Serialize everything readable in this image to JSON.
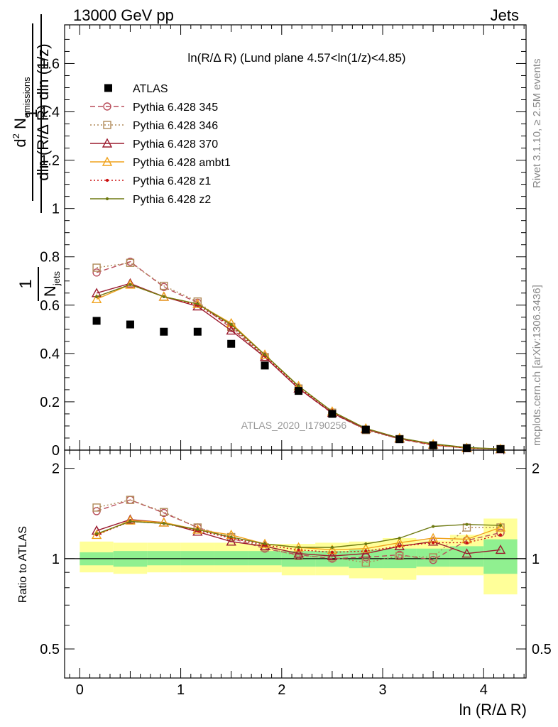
{
  "header": {
    "left": "13000 GeV pp",
    "right": "Jets",
    "plot_title": "ln(R/Δ R) (Lund plane 4.57<ln(1/z)<4.85)",
    "watermark": "ATLAS_2020_I1790256",
    "side_rivet": "Rivet 3.1.10, ≥ 2.5M events",
    "side_mcplots": "mcplots.cern.ch [arXiv:1306.3436]"
  },
  "axes": {
    "xlabel": "ln (R/Δ R)",
    "ylabel_top": "1/N_jets d²N_emissions / dln(R/ΔR) dln(1/z)",
    "ylabel_ratio": "Ratio to ATLAS"
  },
  "colors": {
    "atlas": "#000000",
    "p345": "#b84c5a",
    "p346": "#b08a58",
    "p370": "#9b1b2f",
    "ambt1": "#f0a21c",
    "z1": "#cc1010",
    "z2": "#6e7a12",
    "band_inner": "#90f090",
    "band_outer": "#ffff99"
  },
  "chart_data": {
    "type": "line",
    "x": [
      0.167,
      0.5,
      0.833,
      1.167,
      1.5,
      1.833,
      2.167,
      2.5,
      2.833,
      3.167,
      3.5,
      3.833,
      4.167
    ],
    "xlim": [
      -0.15,
      4.42
    ],
    "xticks": [
      0,
      1,
      2,
      3,
      4
    ],
    "main": {
      "ylim": [
        0,
        1.76
      ],
      "yticks": [
        0.2,
        0.4,
        0.6,
        0.8,
        1,
        1.2,
        1.4,
        1.6
      ],
      "data": {
        "name": "ATLAS",
        "values": [
          0.535,
          0.52,
          0.49,
          0.49,
          0.44,
          0.35,
          0.245,
          0.15,
          0.085,
          0.045,
          0.02,
          0.008,
          0.004
        ]
      },
      "series": [
        {
          "name": "Pythia 6.428 345",
          "key": "p345",
          "marker": "circle",
          "dash": "7,4",
          "values": [
            0.735,
            0.78,
            0.675,
            0.61,
            0.505,
            0.385,
            0.255,
            0.152,
            0.085,
            0.046,
            0.02,
            0.009,
            0.005
          ]
        },
        {
          "name": "Pythia 6.428 346",
          "key": "p346",
          "marker": "square",
          "dash": "2,3",
          "values": [
            0.755,
            0.775,
            0.68,
            0.615,
            0.51,
            0.385,
            0.255,
            0.155,
            0.083,
            0.046,
            0.02,
            0.009,
            0.005
          ]
        },
        {
          "name": "Pythia 6.428 370",
          "key": "p370",
          "marker": "triangle",
          "dash": "",
          "values": [
            0.65,
            0.69,
            0.635,
            0.595,
            0.495,
            0.385,
            0.255,
            0.154,
            0.087,
            0.048,
            0.023,
            0.008,
            0.004
          ]
        },
        {
          "name": "Pythia 6.428 ambt1",
          "key": "ambt1",
          "marker": "triangle",
          "dash": "",
          "values": [
            0.625,
            0.685,
            0.635,
            0.605,
            0.525,
            0.395,
            0.265,
            0.16,
            0.09,
            0.05,
            0.024,
            0.009,
            0.005
          ]
        },
        {
          "name": "Pythia 6.428 z1",
          "key": "z1",
          "marker": "dot",
          "dash": "2,3",
          "values": [
            0.635,
            0.685,
            0.635,
            0.6,
            0.515,
            0.39,
            0.26,
            0.158,
            0.089,
            0.049,
            0.023,
            0.009,
            0.005
          ]
        },
        {
          "name": "Pythia 6.428 z2",
          "key": "z2",
          "marker": "dot",
          "dash": "",
          "values": [
            0.635,
            0.685,
            0.635,
            0.605,
            0.52,
            0.395,
            0.265,
            0.16,
            0.09,
            0.05,
            0.026,
            0.011,
            0.005
          ]
        }
      ]
    },
    "ratio": {
      "ylim": [
        0.4,
        2.3
      ],
      "log": true,
      "yticks": [
        0.5,
        1,
        2
      ],
      "band_edges": [
        0,
        0.333,
        0.667,
        1,
        1.333,
        1.667,
        2,
        2.333,
        2.667,
        3,
        3.333,
        3.667,
        4,
        4.333
      ],
      "band_inner": [
        [
          0.95,
          1.05
        ],
        [
          0.94,
          1.06
        ],
        [
          0.95,
          1.06
        ],
        [
          0.95,
          1.06
        ],
        [
          0.95,
          1.06
        ],
        [
          0.95,
          1.06
        ],
        [
          0.94,
          1.06
        ],
        [
          0.94,
          1.06
        ],
        [
          0.93,
          1.07
        ],
        [
          0.93,
          1.08
        ],
        [
          0.94,
          1.08
        ],
        [
          0.94,
          1.1
        ],
        [
          0.89,
          1.16
        ]
      ],
      "band_outer": [
        [
          0.9,
          1.14
        ],
        [
          0.89,
          1.13
        ],
        [
          0.9,
          1.13
        ],
        [
          0.9,
          1.13
        ],
        [
          0.9,
          1.13
        ],
        [
          0.9,
          1.12
        ],
        [
          0.88,
          1.12
        ],
        [
          0.88,
          1.13
        ],
        [
          0.86,
          1.14
        ],
        [
          0.85,
          1.17
        ],
        [
          0.88,
          1.15
        ],
        [
          0.88,
          1.2
        ],
        [
          0.76,
          1.36
        ]
      ],
      "series": [
        {
          "key": "p345",
          "marker": "circle",
          "dash": "7,4",
          "values": [
            1.44,
            1.57,
            1.42,
            1.27,
            1.17,
            1.08,
            1.03,
            1.0,
            1.01,
            1.03,
            0.99,
            1.15,
            1.22
          ]
        },
        {
          "key": "p346",
          "marker": "square",
          "dash": "2,3",
          "values": [
            1.48,
            1.57,
            1.43,
            1.27,
            1.18,
            1.09,
            1.02,
            1.01,
            0.97,
            1.02,
            1.01,
            1.27,
            1.27
          ]
        },
        {
          "key": "p370",
          "marker": "triangle",
          "dash": "",
          "values": [
            1.24,
            1.35,
            1.32,
            1.23,
            1.14,
            1.1,
            1.04,
            1.02,
            1.04,
            1.1,
            1.14,
            1.04,
            1.07
          ]
        },
        {
          "key": "ambt1",
          "marker": "triangle",
          "dash": "",
          "values": [
            1.2,
            1.34,
            1.32,
            1.25,
            1.2,
            1.12,
            1.09,
            1.07,
            1.08,
            1.13,
            1.17,
            1.16,
            1.27
          ]
        },
        {
          "key": "z1",
          "marker": "dot",
          "dash": "2,3",
          "values": [
            1.2,
            1.33,
            1.31,
            1.24,
            1.17,
            1.11,
            1.07,
            1.05,
            1.06,
            1.1,
            1.13,
            1.13,
            1.2
          ]
        },
        {
          "key": "z2",
          "marker": "dot",
          "dash": "",
          "values": [
            1.21,
            1.33,
            1.31,
            1.25,
            1.18,
            1.12,
            1.09,
            1.09,
            1.12,
            1.17,
            1.28,
            1.3,
            1.29
          ]
        }
      ]
    }
  }
}
